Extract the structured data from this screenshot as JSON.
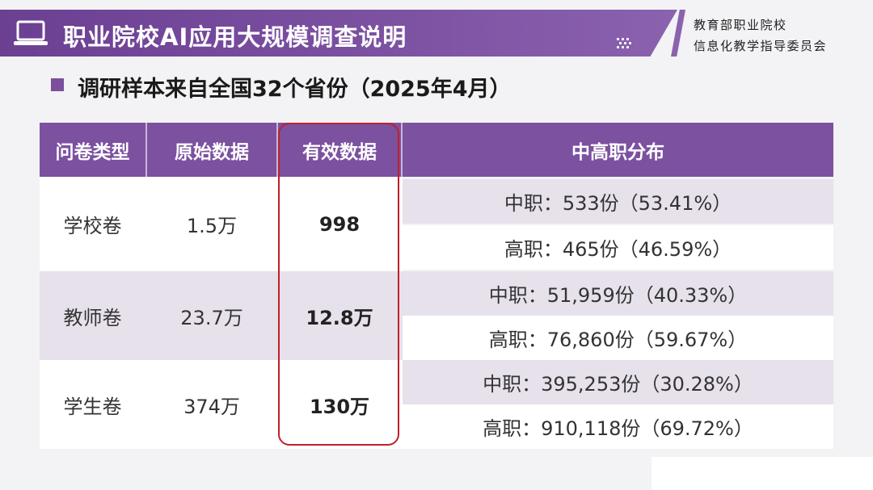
{
  "header": {
    "title": "职业院校AI应用大规模调查说明",
    "org_line1": "教育部职业院校",
    "org_line2": "信息化教学指导委员会",
    "icons": [
      "laptop-icon",
      "dots-icon"
    ],
    "colors": {
      "banner": "#7b4f9d",
      "accent_border": "#c0202a"
    }
  },
  "subtitle": "调研样本来自全国32个省份（2025年4月）",
  "table": {
    "headers": [
      "问卷类型",
      "原始数据",
      "有效数据",
      "中高职分布"
    ],
    "rows": [
      {
        "type": "学校卷",
        "raw": "1.5万",
        "valid": "998",
        "dist": [
          "中职：533份（53.41%）",
          "高职：465份（46.59%）"
        ]
      },
      {
        "type": "教师卷",
        "raw": "23.7万",
        "valid": "12.8万",
        "dist": [
          "中职：51,959份（40.33%）",
          "高职：76,860份（59.67%）"
        ]
      },
      {
        "type": "学生卷",
        "raw": "374万",
        "valid": "130万",
        "dist": [
          "中职：395,253份（30.28%）",
          "高职：910,118份（69.72%）"
        ]
      }
    ]
  }
}
